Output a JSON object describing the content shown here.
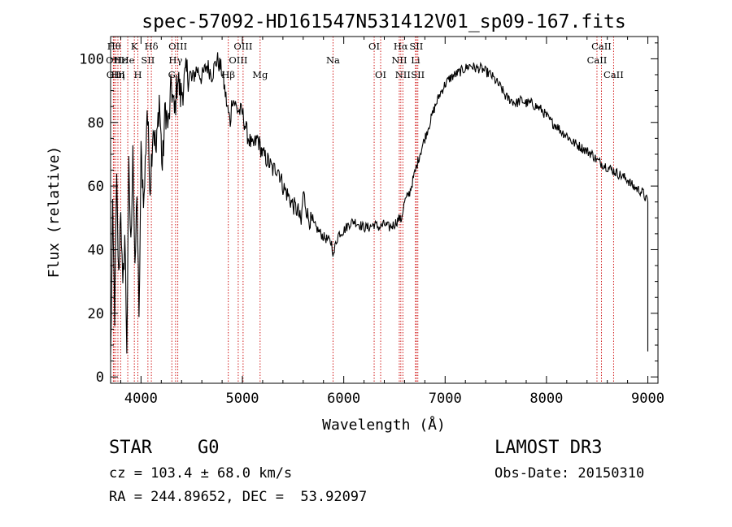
{
  "chart_data": {
    "type": "line",
    "title": "spec-57092-HD161547N531412V01_sp09-167.fits",
    "xlabel": "Wavelength (Å)",
    "ylabel": "Flux (relative)",
    "xlim": [
      3700,
      9100
    ],
    "ylim": [
      -2,
      107
    ],
    "x_ticks": [
      4000,
      5000,
      6000,
      7000,
      8000,
      9000
    ],
    "y_ticks": [
      0,
      20,
      40,
      60,
      80,
      100
    ],
    "grid": false,
    "line_color": "#000000",
    "marker_color": "#cc0000",
    "series": [
      {
        "x": [
          3700,
          3720,
          3740,
          3760,
          3780,
          3800,
          3820,
          3840,
          3860,
          3880,
          3900,
          3920,
          3940,
          3960,
          3980,
          4000,
          4030,
          4060,
          4090,
          4120,
          4150,
          4180,
          4210,
          4240,
          4270,
          4300,
          4330,
          4360,
          4390,
          4420,
          4460,
          4500,
          4550,
          4600,
          4650,
          4700,
          4750,
          4800,
          4850,
          4880,
          4900,
          4950,
          5000,
          5050,
          5100,
          5150,
          5200,
          5250,
          5300,
          5350,
          5400,
          5450,
          5500,
          5550,
          5580,
          5600,
          5650,
          5700,
          5750,
          5800,
          5850,
          5880,
          5900,
          5920,
          5950,
          6000,
          6050,
          6100,
          6150,
          6200,
          6250,
          6300,
          6350,
          6400,
          6450,
          6500,
          6550,
          6563,
          6600,
          6650,
          6700,
          6750,
          6800,
          6850,
          6900,
          6950,
          7000,
          7050,
          7100,
          7150,
          7200,
          7250,
          7300,
          7350,
          7400,
          7450,
          7500,
          7550,
          7600,
          7650,
          7700,
          7750,
          7800,
          7850,
          7900,
          7950,
          8000,
          8050,
          8100,
          8150,
          8200,
          8250,
          8300,
          8350,
          8400,
          8450,
          8500,
          8550,
          8600,
          8650,
          8700,
          8750,
          8800,
          8850,
          8900,
          8950,
          8980,
          9000
        ],
        "y": [
          5,
          50,
          20,
          60,
          30,
          55,
          25,
          45,
          10,
          65,
          40,
          75,
          30,
          60,
          15,
          70,
          55,
          85,
          60,
          80,
          70,
          88,
          65,
          85,
          78,
          92,
          82,
          95,
          88,
          92,
          96,
          93,
          97,
          94,
          98,
          95,
          100,
          96,
          85,
          80,
          88,
          84,
          83,
          76,
          72,
          75,
          70,
          68,
          65,
          66,
          60,
          57,
          54,
          52,
          48,
          58,
          50,
          48,
          46,
          44,
          43,
          42,
          38,
          42,
          45,
          46,
          48,
          49,
          48,
          47,
          47,
          48,
          47,
          48,
          47,
          48,
          50,
          49,
          55,
          58,
          64,
          70,
          75,
          80,
          85,
          89,
          92,
          94,
          95,
          96,
          97,
          98,
          97,
          97,
          96,
          95,
          93,
          91,
          88,
          87,
          86,
          87,
          86,
          86,
          85,
          84,
          82,
          80,
          79,
          77,
          76,
          74,
          73,
          72,
          71,
          70,
          68,
          67,
          66,
          65,
          64,
          63,
          62,
          60,
          59,
          58,
          56,
          55
        ]
      }
    ],
    "line_markers": [
      {
        "x": 3734,
        "label": "Hθ",
        "row": 0
      },
      {
        "x": 3727,
        "label": "OII",
        "row": 1
      },
      {
        "x": 3750,
        "label": "OIII",
        "row": 2
      },
      {
        "x": 3772,
        "label": "Hη",
        "row": 2
      },
      {
        "x": 3799,
        "label": "Hε",
        "row": 1
      },
      {
        "x": 3869,
        "label": "He",
        "row": 1
      },
      {
        "x": 3934,
        "label": "K",
        "row": 0
      },
      {
        "x": 3969,
        "label": "H",
        "row": 2
      },
      {
        "x": 4068,
        "label": "SII",
        "row": 1
      },
      {
        "x": 4102,
        "label": "Hδ",
        "row": 0
      },
      {
        "x": 4304,
        "label": "G",
        "row": 2
      },
      {
        "x": 4341,
        "label": "Hγ",
        "row": 1
      },
      {
        "x": 4363,
        "label": "OIII",
        "row": 0
      },
      {
        "x": 4861,
        "label": "Hβ",
        "row": 2
      },
      {
        "x": 4959,
        "label": "OIII",
        "row": 1
      },
      {
        "x": 5007,
        "label": "OIII",
        "row": 0
      },
      {
        "x": 5175,
        "label": "Mg",
        "row": 2
      },
      {
        "x": 5894,
        "label": "Na",
        "row": 1
      },
      {
        "x": 6300,
        "label": "OI",
        "row": 0
      },
      {
        "x": 6364,
        "label": "OI",
        "row": 2
      },
      {
        "x": 6548,
        "label": "NII",
        "row": 1
      },
      {
        "x": 6563,
        "label": "Hα",
        "row": 0
      },
      {
        "x": 6583,
        "label": "NII",
        "row": 2
      },
      {
        "x": 6708,
        "label": "Li",
        "row": 1
      },
      {
        "x": 6716,
        "label": "SII",
        "row": 0
      },
      {
        "x": 6731,
        "label": "SII",
        "row": 2
      },
      {
        "x": 8498,
        "label": "CaII",
        "row": 1
      },
      {
        "x": 8542,
        "label": "CaII",
        "row": 0
      },
      {
        "x": 8662,
        "label": "CaII",
        "row": 2
      }
    ]
  },
  "info": {
    "class_label": "STAR",
    "subclass": "G0",
    "survey": "LAMOST DR3",
    "cz_line": "cz = 103.4 ± 68.0 km/s",
    "obs_date": "Obs-Date: 20150310",
    "coords": "RA = 244.89652, DEC =  53.92097"
  }
}
